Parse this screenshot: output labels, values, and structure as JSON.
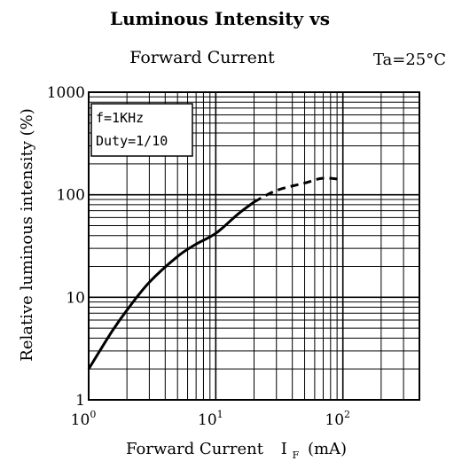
{
  "chart_data": {
    "type": "line",
    "title": "Luminous Intensity vs",
    "subtitle": "Forward Current",
    "condition": "Ta=25°C",
    "xlabel": "Forward Current",
    "xlabel_symbol": "I",
    "xlabel_subscript": "F",
    "xlabel_unit": "(mA)",
    "ylabel": "Relative luminous intensity (%)",
    "x_scale": "log",
    "y_scale": "log",
    "xlim": [
      1,
      400
    ],
    "ylim": [
      1,
      1000
    ],
    "x_ticks": [
      {
        "base": "10",
        "exp": "0",
        "value": 1
      },
      {
        "base": "10",
        "exp": "1",
        "value": 10
      },
      {
        "base": "10",
        "exp": "2",
        "value": 100
      }
    ],
    "y_ticks": [
      {
        "label": "1",
        "value": 1
      },
      {
        "label": "10",
        "value": 10
      },
      {
        "label": "100",
        "value": 100
      },
      {
        "label": "1000",
        "value": 1000
      }
    ],
    "grid": true,
    "legend_box": {
      "lines": [
        "f=1KHz",
        "Duty=1/10"
      ],
      "placement": "top-left"
    },
    "series": [
      {
        "style": "solid",
        "x": [
          1,
          1.5,
          2,
          3,
          5,
          7,
          10,
          15,
          20
        ],
        "y": [
          2,
          4.5,
          7.5,
          14,
          25,
          33,
          42,
          65,
          85
        ]
      },
      {
        "style": "dashed",
        "x": [
          20,
          30,
          50,
          70,
          100
        ],
        "y": [
          85,
          110,
          130,
          145,
          140
        ]
      }
    ]
  }
}
